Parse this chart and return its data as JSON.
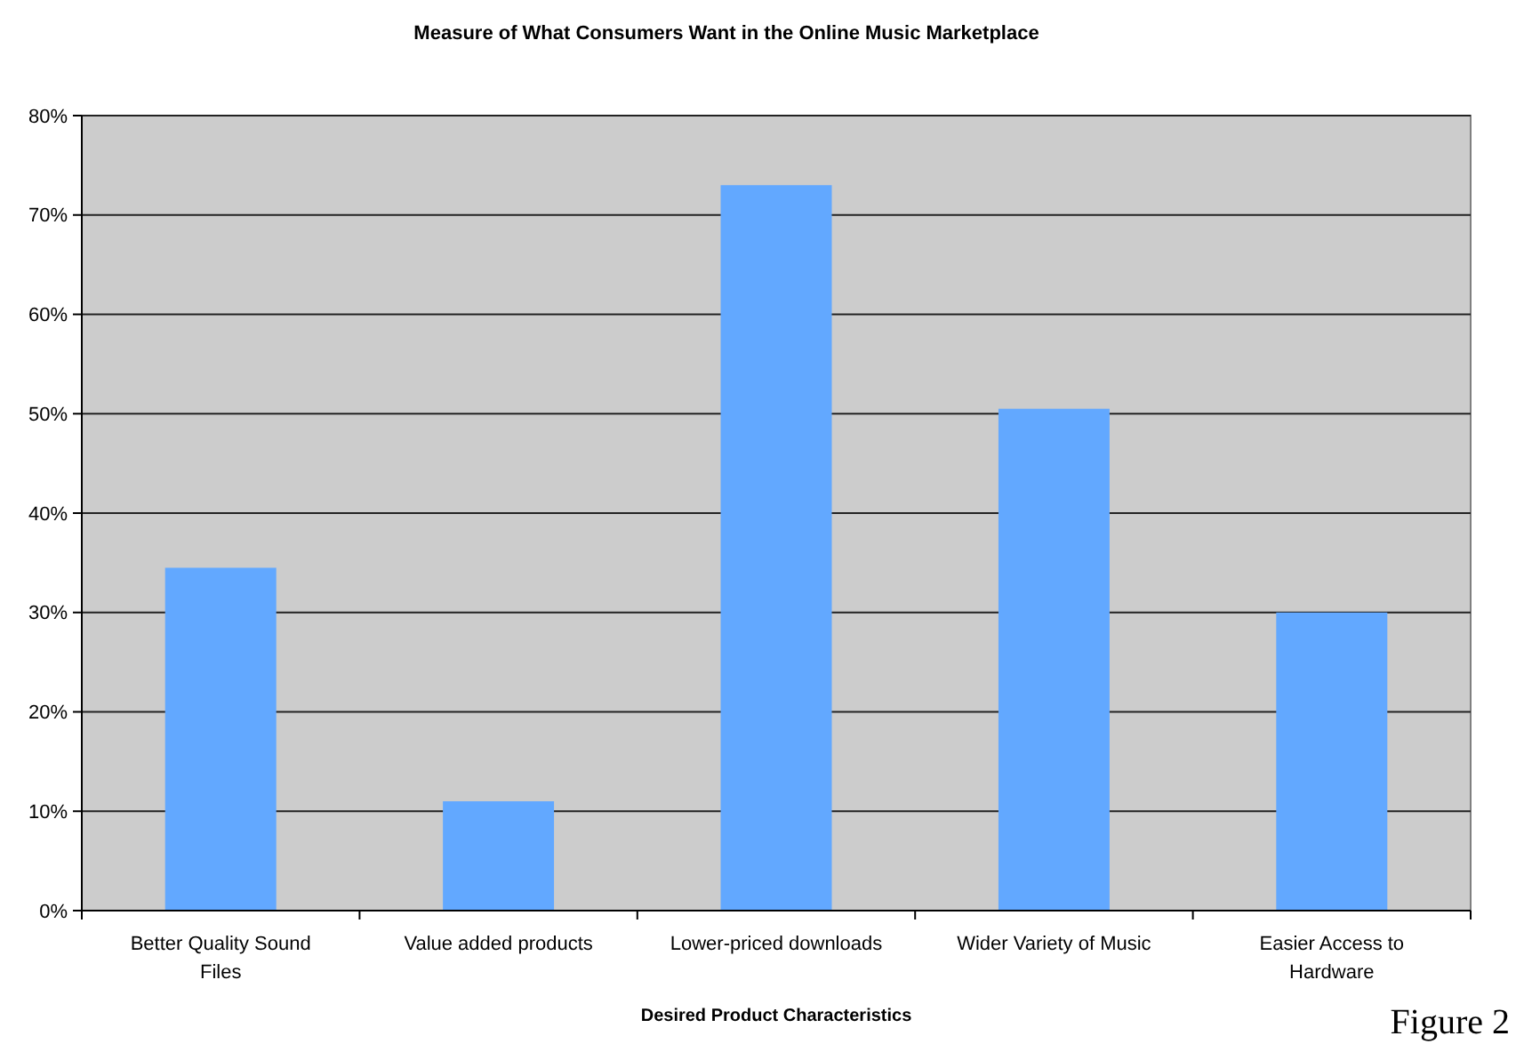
{
  "chart_data": {
    "type": "bar",
    "title": "Measure of What Consumers Want in the Online Music Marketplace",
    "xlabel": "Desired Product Characteristics",
    "categories": [
      "Better Quality Sound Files",
      "Value added products",
      "Lower-priced downloads",
      "Wider Variety of Music",
      "Easier Access to Hardware"
    ],
    "values": [
      34.5,
      11,
      73,
      50.5,
      30
    ],
    "color": "#62a8ff",
    "ylim": [
      0,
      80
    ],
    "yticks": [
      {
        "value": 0,
        "label": "0%"
      },
      {
        "value": 10,
        "label": "10%"
      },
      {
        "value": 20,
        "label": "20%"
      },
      {
        "value": 30,
        "label": "30%"
      },
      {
        "value": 40,
        "label": "40%"
      },
      {
        "value": 50,
        "label": "50%"
      },
      {
        "value": 60,
        "label": "60%"
      },
      {
        "value": 70,
        "label": "70%"
      },
      {
        "value": 80,
        "label": "80%"
      }
    ],
    "grid": "y",
    "annotations": [
      "Figure 2"
    ]
  }
}
